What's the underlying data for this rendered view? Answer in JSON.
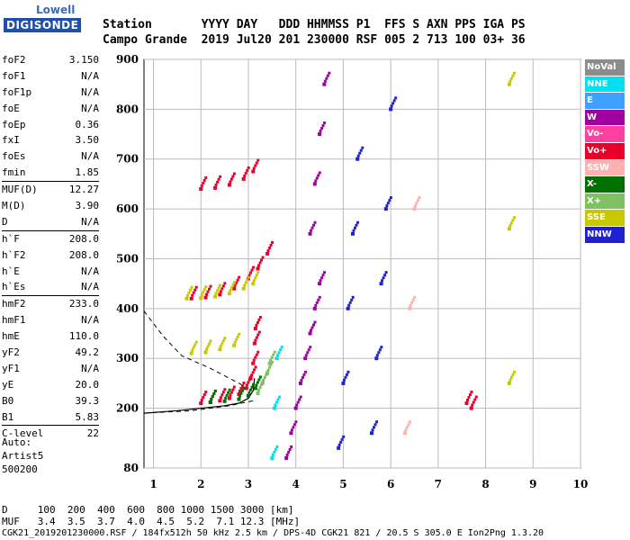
{
  "logo": {
    "top": "Lowell",
    "bottom": "DIGISONDE"
  },
  "header": {
    "line1": "Station       YYYY DAY   DDD HHMMSS P1  FFS S AXN PPS IGA PS",
    "line2": "Campo Grande  2019 Jul20 201 230000 RSF 005 2 713 100 03+ 36"
  },
  "params": [
    {
      "k": "foF2",
      "v": "3.150"
    },
    {
      "k": "foF1",
      "v": "N/A"
    },
    {
      "k": "foF1p",
      "v": "N/A"
    },
    {
      "k": "foE",
      "v": "N/A"
    },
    {
      "k": "foEp",
      "v": "0.36"
    },
    {
      "k": "fxI",
      "v": "3.50"
    },
    {
      "k": "foEs",
      "v": "N/A"
    },
    {
      "k": "fmin",
      "v": "1.85"
    },
    {
      "k": "MUF(D)",
      "v": "12.27",
      "sep": true
    },
    {
      "k": "M(D)",
      "v": "3.90"
    },
    {
      "k": "D",
      "v": "N/A"
    },
    {
      "k": "h`F",
      "v": "208.0",
      "sep": true
    },
    {
      "k": "h`F2",
      "v": "208.0"
    },
    {
      "k": "h`E",
      "v": "N/A"
    },
    {
      "k": "h`Es",
      "v": "N/A"
    },
    {
      "k": "hmF2",
      "v": "233.0",
      "sep": true
    },
    {
      "k": "hmF1",
      "v": "N/A"
    },
    {
      "k": "hmE",
      "v": "110.0"
    },
    {
      "k": "yF2",
      "v": "49.2"
    },
    {
      "k": "yF1",
      "v": "N/A"
    },
    {
      "k": "yE",
      "v": "20.0"
    },
    {
      "k": "B0",
      "v": "39.3"
    },
    {
      "k": "B1",
      "v": "5.83"
    },
    {
      "k": "C-level",
      "v": "22",
      "sep": true
    }
  ],
  "auto": [
    "Auto:",
    "Artist5",
    "500200"
  ],
  "legend": [
    {
      "label": "NoVal",
      "color": "#8c8c8c"
    },
    {
      "label": "NNE",
      "color": "#00e0f0"
    },
    {
      "label": "E",
      "color": "#40a0ff"
    },
    {
      "label": "W",
      "color": "#a000a0"
    },
    {
      "label": "Vo-",
      "color": "#ff40a0"
    },
    {
      "label": "Vo+",
      "color": "#e8002a"
    },
    {
      "label": "SSW",
      "color": "#ffb0b0"
    },
    {
      "label": "X-",
      "color": "#007000"
    },
    {
      "label": "X+",
      "color": "#80c060"
    },
    {
      "label": "SSE",
      "color": "#c8c800"
    },
    {
      "label": "NNW",
      "color": "#2020d0"
    }
  ],
  "footer": {
    "line1": "D     100  200  400  600  800 1000 1500 3000 [km]",
    "line2": "MUF   3.4  3.5  3.7  4.0  4.5  5.2  7.1 12.3 [MHz]",
    "line3": "CGK21_2019201230000.RSF / 184fx512h 50 kHz 2.5 km / DPS-4D CGK21 821 / 20.5 S 305.0 E Ion2Png 1.3.20"
  },
  "chart_data": {
    "type": "scatter",
    "xlim": [
      0.8,
      10
    ],
    "ylim": [
      80,
      900
    ],
    "xticks": [
      1,
      2,
      3,
      4,
      5,
      6,
      7,
      8,
      9,
      10
    ],
    "yticks": [
      80,
      200,
      300,
      400,
      500,
      600,
      700,
      800,
      900
    ],
    "grid": true,
    "series": [
      {
        "name": "Vo+",
        "color": "#e8002a",
        "x": [
          2.0,
          2.2,
          2.4,
          2.6,
          2.8,
          2.95,
          3.05,
          3.1,
          3.13,
          3.15
        ],
        "y": [
          210,
          212,
          215,
          220,
          228,
          240,
          260,
          290,
          330,
          360
        ]
      },
      {
        "name": "X-",
        "color": "#007000",
        "x": [
          2.2,
          2.5,
          2.8,
          3.0,
          3.15
        ],
        "y": [
          212,
          214,
          218,
          225,
          240
        ]
      },
      {
        "name": "X+",
        "color": "#80c060",
        "x": [
          3.2,
          3.3,
          3.4,
          3.45
        ],
        "y": [
          230,
          250,
          270,
          290
        ]
      },
      {
        "name": "Vo+",
        "color": "#e8002a",
        "x": [
          1.8,
          2.1,
          2.4,
          2.7,
          3.0,
          3.2,
          3.4
        ],
        "y": [
          420,
          422,
          428,
          440,
          460,
          480,
          510
        ]
      },
      {
        "name": "SSE",
        "color": "#c8c800",
        "x": [
          1.7,
          2.0,
          2.3,
          2.6,
          2.9,
          3.1
        ],
        "y": [
          420,
          421,
          424,
          430,
          440,
          450
        ]
      },
      {
        "name": "Vo+",
        "color": "#e8002a",
        "x": [
          2.0,
          2.3,
          2.6,
          2.9,
          3.1
        ],
        "y": [
          640,
          642,
          648,
          660,
          675
        ]
      },
      {
        "name": "SSE",
        "color": "#c8c800",
        "x": [
          1.8,
          2.1,
          2.4,
          2.7
        ],
        "y": [
          310,
          312,
          318,
          326
        ]
      },
      {
        "name": "W",
        "color": "#a000a0",
        "x": [
          3.8,
          3.9,
          4.0,
          4.1,
          4.2,
          4.3,
          4.4,
          4.5
        ],
        "y": [
          100,
          150,
          200,
          250,
          300,
          350,
          400,
          450
        ]
      },
      {
        "name": "W",
        "color": "#a000a0",
        "x": [
          4.3,
          4.4,
          4.5,
          4.6
        ],
        "y": [
          550,
          650,
          750,
          850
        ]
      },
      {
        "name": "NNW",
        "color": "#2020d0",
        "x": [
          4.9,
          5.0,
          5.1,
          5.2,
          5.3
        ],
        "y": [
          120,
          250,
          400,
          550,
          700
        ]
      },
      {
        "name": "NNW",
        "color": "#2020d0",
        "x": [
          5.6,
          5.7,
          5.8,
          5.9,
          6.0
        ],
        "y": [
          150,
          300,
          450,
          600,
          800
        ]
      },
      {
        "name": "SSW",
        "color": "#ffb0b0",
        "x": [
          6.3,
          6.4,
          6.5
        ],
        "y": [
          150,
          400,
          600
        ]
      },
      {
        "name": "NNE",
        "color": "#00e0f0",
        "x": [
          3.5,
          3.55,
          3.6
        ],
        "y": [
          100,
          200,
          300
        ]
      },
      {
        "name": "SSE",
        "color": "#c8c800",
        "x": [
          8.5,
          8.5,
          8.5
        ],
        "y": [
          250,
          560,
          850
        ]
      },
      {
        "name": "Vo+",
        "color": "#e8002a",
        "x": [
          7.6,
          7.7
        ],
        "y": [
          210,
          200
        ]
      }
    ],
    "profile": {
      "color": "#000",
      "x": [
        0.8,
        1.5,
        2.0,
        2.5,
        2.8,
        3.0,
        3.1,
        3.13
      ],
      "y": [
        190,
        195,
        200,
        205,
        210,
        220,
        235,
        260
      ]
    },
    "dashed": [
      {
        "x": [
          0.8,
          1.2,
          1.6,
          2.2,
          2.6,
          3.0
        ],
        "y": [
          395,
          345,
          305,
          280,
          260,
          240
        ]
      },
      {
        "x": [
          0.8,
          1.8,
          2.6,
          3.1
        ],
        "y": [
          190,
          195,
          205,
          215
        ]
      }
    ]
  }
}
